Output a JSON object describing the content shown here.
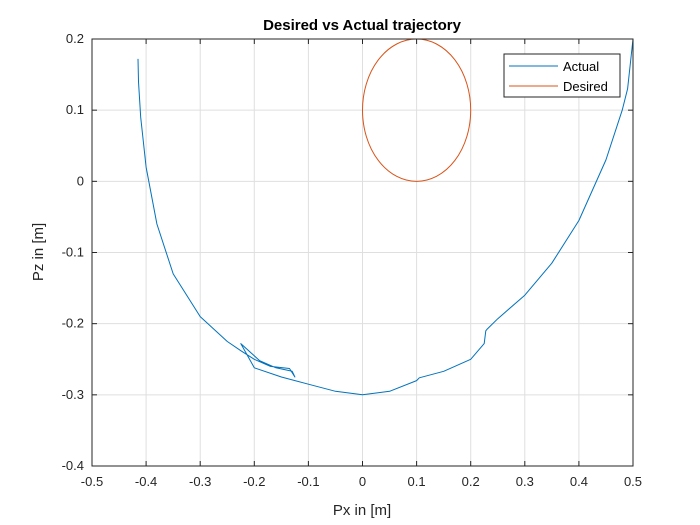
{
  "chart_data": {
    "type": "line",
    "title": "Desired vs Actual trajectory",
    "xlabel": "Px in [m]",
    "ylabel": "Pz in [m]",
    "xlim": [
      -0.5,
      0.5
    ],
    "ylim": [
      -0.4,
      0.2
    ],
    "x_ticks": [
      -0.5,
      -0.4,
      -0.3,
      -0.2,
      -0.1,
      0,
      0.1,
      0.2,
      0.3,
      0.4,
      0.5
    ],
    "x_tick_labels": [
      "-0.5",
      "-0.4",
      "-0.3",
      "-0.2",
      "-0.1",
      "0",
      "0.1",
      "0.2",
      "0.3",
      "0.4",
      "0.5"
    ],
    "y_ticks": [
      -0.4,
      -0.3,
      -0.2,
      -0.1,
      0,
      0.1,
      0.2
    ],
    "y_tick_labels": [
      "-0.4",
      "-0.3",
      "-0.2",
      "-0.1",
      "0",
      "0.1",
      "0.2"
    ],
    "grid": true,
    "legend_position": "top-right",
    "series": [
      {
        "name": "Actual",
        "color": "#0072BD",
        "x": [
          -0.415,
          -0.414,
          -0.41,
          -0.4,
          -0.38,
          -0.35,
          -0.3,
          -0.25,
          -0.225,
          -0.2,
          -0.17,
          -0.135,
          -0.125,
          -0.13,
          -0.16,
          -0.19,
          -0.225,
          -0.2,
          -0.15,
          -0.1,
          -0.05,
          0,
          0.05,
          0.1,
          0.105,
          0.15,
          0.2,
          0.225,
          0.228,
          0.23,
          0.25,
          0.3,
          0.35,
          0.4,
          0.45,
          0.48,
          0.49,
          0.5
        ],
        "y": [
          0.172,
          0.14,
          0.09,
          0.02,
          -0.06,
          -0.13,
          -0.19,
          -0.225,
          -0.238,
          -0.25,
          -0.26,
          -0.263,
          -0.275,
          -0.267,
          -0.262,
          -0.252,
          -0.228,
          -0.262,
          -0.275,
          -0.285,
          -0.295,
          -0.3,
          -0.295,
          -0.28,
          -0.276,
          -0.267,
          -0.25,
          -0.228,
          -0.21,
          -0.208,
          -0.193,
          -0.16,
          -0.115,
          -0.055,
          0.03,
          0.1,
          0.13,
          0.2
        ]
      },
      {
        "name": "Desired",
        "color": "#D95319",
        "shape": "circle",
        "center": [
          0.1,
          0.1
        ],
        "radius": 0.1
      }
    ]
  }
}
